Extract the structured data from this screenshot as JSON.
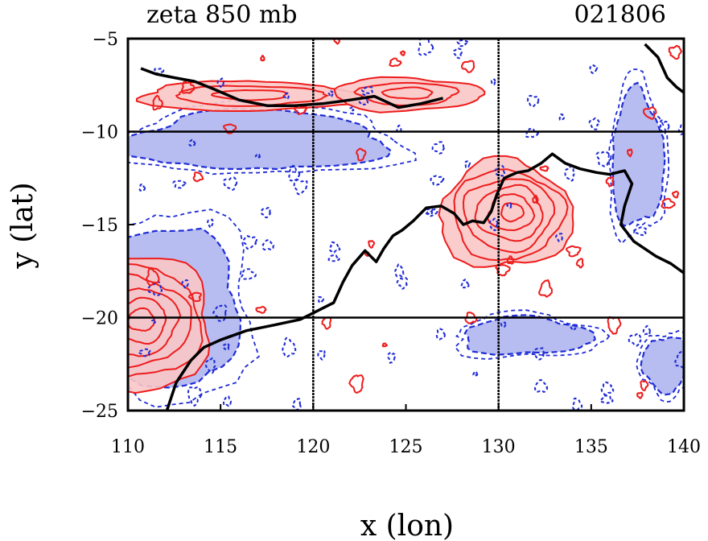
{
  "chart_data": {
    "type": "heatmap",
    "title": "zeta 850 mb",
    "date_label": "021806",
    "xlabel": "x (lon)",
    "ylabel": "y (lat)",
    "xlim": [
      110,
      140
    ],
    "ylim": [
      -25,
      -5
    ],
    "xticks": [
      110,
      115,
      120,
      125,
      130,
      135,
      140
    ],
    "yticks": [
      -5,
      -10,
      -15,
      -20,
      -25
    ],
    "grid_lon": [
      120,
      130
    ],
    "grid_lat": [
      -10,
      -20
    ],
    "colors": {
      "positive_line": "#ee1c1c",
      "positive_fill": "#f9c7c7",
      "negative_line": "#1f2bd6",
      "negative_fill": "#aab2ee",
      "coastline": "#000000",
      "grid": "#000000"
    },
    "coastline": [
      [
        112.1,
        -25.0
      ],
      [
        112.6,
        -23.5
      ],
      [
        113.4,
        -22.3
      ],
      [
        114.1,
        -21.6
      ],
      [
        115.0,
        -21.2
      ],
      [
        116.4,
        -20.7
      ],
      [
        117.9,
        -20.4
      ],
      [
        119.3,
        -20.1
      ],
      [
        120.3,
        -19.6
      ],
      [
        121.1,
        -19.2
      ],
      [
        121.6,
        -18.1
      ],
      [
        122.1,
        -17.2
      ],
      [
        122.8,
        -16.4
      ],
      [
        123.4,
        -17.0
      ],
      [
        123.8,
        -16.3
      ],
      [
        124.3,
        -15.6
      ],
      [
        124.8,
        -15.3
      ],
      [
        125.4,
        -14.8
      ],
      [
        126.1,
        -14.1
      ],
      [
        126.9,
        -14.0
      ],
      [
        127.6,
        -14.4
      ],
      [
        128.1,
        -15.0
      ],
      [
        128.6,
        -14.8
      ],
      [
        129.2,
        -14.9
      ],
      [
        129.6,
        -14.3
      ],
      [
        129.9,
        -13.4
      ],
      [
        130.3,
        -12.5
      ],
      [
        131.0,
        -12.2
      ],
      [
        131.6,
        -12.1
      ],
      [
        132.3,
        -11.7
      ],
      [
        132.9,
        -11.2
      ],
      [
        133.6,
        -11.7
      ],
      [
        134.4,
        -12.0
      ],
      [
        135.3,
        -12.2
      ],
      [
        136.0,
        -12.3
      ],
      [
        136.8,
        -12.1
      ],
      [
        137.2,
        -12.8
      ],
      [
        136.8,
        -14.0
      ],
      [
        136.6,
        -15.0
      ],
      [
        137.3,
        -15.9
      ],
      [
        138.5,
        -16.7
      ],
      [
        139.3,
        -17.1
      ],
      [
        140.0,
        -17.6
      ]
    ],
    "coastline_north": [
      [
        110.7,
        -6.6
      ],
      [
        111.5,
        -6.9
      ],
      [
        112.5,
        -7.1
      ],
      [
        113.6,
        -7.3
      ],
      [
        114.6,
        -7.7
      ],
      [
        116.0,
        -8.3
      ],
      [
        117.5,
        -8.6
      ],
      [
        119.0,
        -8.6
      ],
      [
        120.5,
        -8.5
      ],
      [
        122.0,
        -8.3
      ],
      [
        123.3,
        -8.1
      ],
      [
        124.6,
        -8.7
      ],
      [
        125.8,
        -8.5
      ],
      [
        127.0,
        -8.2
      ]
    ],
    "coastline_northeast": [
      [
        137.9,
        -5.3
      ],
      [
        138.6,
        -6.0
      ],
      [
        139.1,
        -7.1
      ],
      [
        139.6,
        -7.6
      ],
      [
        140.0,
        -7.9
      ]
    ],
    "positive_regions": [
      {
        "name": "cyclone-center",
        "center": [
          130.4,
          -14.5
        ],
        "radius": [
          3.6,
          2.9
        ],
        "levels": 6
      },
      {
        "name": "west-cyclone",
        "center": [
          110.4,
          -20.3
        ],
        "radius": [
          4.2,
          3.6
        ],
        "levels": 6
      },
      {
        "name": "java-shear-band",
        "center": [
          116.5,
          -8.1
        ],
        "radius": [
          6.0,
          0.8
        ],
        "levels": 3
      },
      {
        "name": "banda-shear-band",
        "center": [
          125.0,
          -8.0
        ],
        "radius": [
          4.0,
          0.9
        ],
        "levels": 3
      }
    ],
    "negative_regions": [
      {
        "name": "west-negative-arc",
        "center": [
          111.5,
          -19.5
        ],
        "radius": [
          4.8,
          4.2
        ]
      },
      {
        "name": "north-negative-band",
        "center": [
          117.0,
          -10.5
        ],
        "radius": [
          7.0,
          1.6
        ]
      },
      {
        "name": "east-negative-band",
        "center": [
          137.5,
          -11.5
        ],
        "radius": [
          1.4,
          3.6
        ]
      },
      {
        "name": "south-negative-patch",
        "center": [
          131.5,
          -21.0
        ],
        "radius": [
          3.5,
          1.0
        ]
      },
      {
        "name": "southeast-negative-patch",
        "center": [
          139.0,
          -22.5
        ],
        "radius": [
          1.2,
          1.5
        ]
      }
    ]
  }
}
